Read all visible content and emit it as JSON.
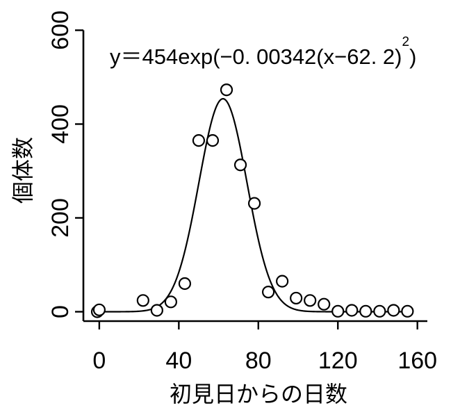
{
  "chart_data": {
    "type": "scatter",
    "title": "",
    "xlabel": "初見日からの日数",
    "ylabel": "個体数",
    "xlim": [
      -8,
      165
    ],
    "ylim": [
      -20,
      620
    ],
    "x_ticks": [
      "0",
      "40",
      "80",
      "120",
      "160"
    ],
    "y_ticks": [
      "0",
      "200",
      "400",
      "600"
    ],
    "equation": {
      "text": "y＝454exp(−0. 00342(x−62. 2)",
      "close": ")",
      "sup": "2"
    },
    "fit": {
      "a": 454,
      "b": 0.00342,
      "c": 62.2
    },
    "points": [
      {
        "x": -1,
        "y": 0
      },
      {
        "x": 0,
        "y": 4
      },
      {
        "x": 22,
        "y": 24
      },
      {
        "x": 29,
        "y": 3
      },
      {
        "x": 36,
        "y": 21
      },
      {
        "x": 43,
        "y": 60
      },
      {
        "x": 50,
        "y": 365
      },
      {
        "x": 57,
        "y": 365
      },
      {
        "x": 64,
        "y": 473
      },
      {
        "x": 71,
        "y": 313
      },
      {
        "x": 78,
        "y": 231
      },
      {
        "x": 85,
        "y": 42
      },
      {
        "x": 92,
        "y": 65
      },
      {
        "x": 99,
        "y": 29
      },
      {
        "x": 106,
        "y": 24
      },
      {
        "x": 113,
        "y": 16
      },
      {
        "x": 120,
        "y": 1
      },
      {
        "x": 127,
        "y": 3
      },
      {
        "x": 134,
        "y": 1
      },
      {
        "x": 141,
        "y": 1
      },
      {
        "x": 148,
        "y": 3
      },
      {
        "x": 155,
        "y": 1
      }
    ]
  }
}
